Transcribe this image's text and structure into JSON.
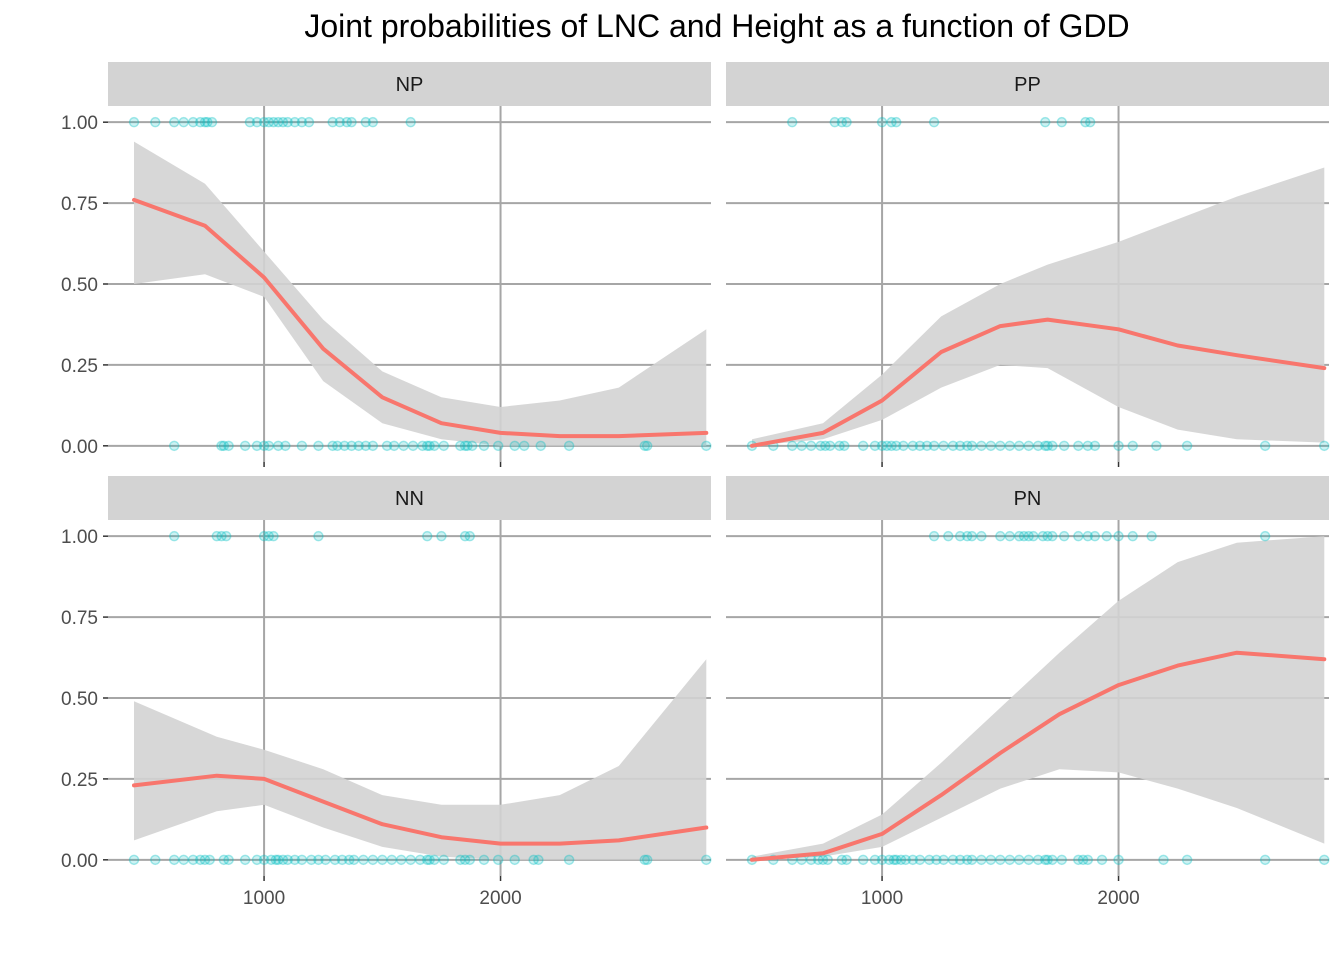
{
  "chart_data": {
    "type": "scatter",
    "title": "Joint probabilities of LNC and Height as a function of GDD",
    "xlabel": "",
    "ylabel": "",
    "xlim": [
      340,
      2890
    ],
    "ylim": [
      -0.05,
      1.05
    ],
    "x_ticks": [
      1000,
      2000
    ],
    "x_tick_labels": [
      "1000",
      "2000"
    ],
    "y_ticks": [
      0,
      0.25,
      0.5,
      0.75,
      1
    ],
    "y_tick_labels": [
      "0.00",
      "0.25",
      "0.50",
      "0.75",
      "1.00"
    ],
    "grid": true,
    "legend": "none",
    "colors": {
      "points": "#00BFC4",
      "fit_line": "#F8766D",
      "ribbon": "#d3d3d3",
      "strip": "#d3d3d3",
      "grid": "#a6a6a6"
    },
    "panels": [
      {
        "label": "NP",
        "points_at_1": [
          450,
          540,
          620,
          660,
          700,
          730,
          750,
          760,
          780,
          940,
          970,
          1000,
          1020,
          1040,
          1060,
          1080,
          1100,
          1130,
          1160,
          1190,
          1290,
          1320,
          1350,
          1370,
          1430,
          1460,
          1620
        ],
        "points_at_0": [
          620,
          820,
          830,
          850,
          920,
          970,
          1000,
          1020,
          1060,
          1090,
          1160,
          1230,
          1290,
          1310,
          1340,
          1370,
          1400,
          1430,
          1460,
          1520,
          1550,
          1590,
          1630,
          1670,
          1690,
          1700,
          1720,
          1760,
          1830,
          1850,
          1860,
          1880,
          1930,
          1990,
          2060,
          2100,
          2170,
          2290,
          2610,
          2620,
          2870
        ],
        "fit": {
          "x": [
            450,
            750,
            1000,
            1250,
            1500,
            1750,
            2000,
            2250,
            2500,
            2870
          ],
          "y": [
            0.76,
            0.68,
            0.52,
            0.3,
            0.15,
            0.07,
            0.04,
            0.03,
            0.03,
            0.04
          ]
        },
        "ribbon": {
          "x": [
            450,
            750,
            1000,
            1250,
            1500,
            1750,
            2000,
            2250,
            2500,
            2870
          ],
          "lower": [
            0.5,
            0.53,
            0.46,
            0.2,
            0.07,
            0.02,
            0.0,
            0.0,
            0.0,
            0.0
          ],
          "upper": [
            0.94,
            0.81,
            0.6,
            0.39,
            0.23,
            0.15,
            0.12,
            0.14,
            0.18,
            0.36
          ]
        }
      },
      {
        "label": "PP",
        "points_at_1": [
          620,
          800,
          830,
          850,
          1000,
          1040,
          1060,
          1220,
          1690,
          1760,
          1860,
          1880
        ],
        "points_at_0": [
          450,
          540,
          620,
          660,
          700,
          740,
          760,
          780,
          820,
          840,
          920,
          970,
          1000,
          1020,
          1040,
          1060,
          1090,
          1130,
          1160,
          1190,
          1220,
          1260,
          1300,
          1330,
          1360,
          1380,
          1420,
          1460,
          1500,
          1540,
          1580,
          1620,
          1660,
          1690,
          1700,
          1720,
          1770,
          1830,
          1870,
          1900,
          2000,
          2060,
          2160,
          2290,
          2620,
          2870
        ],
        "fit": {
          "x": [
            450,
            750,
            1000,
            1250,
            1500,
            1700,
            2000,
            2250,
            2500,
            2870
          ],
          "y": [
            0.0,
            0.04,
            0.14,
            0.29,
            0.37,
            0.39,
            0.36,
            0.31,
            0.28,
            0.24
          ]
        },
        "ribbon": {
          "x": [
            450,
            750,
            1000,
            1250,
            1500,
            1700,
            2000,
            2250,
            2500,
            2870
          ],
          "lower": [
            0.0,
            0.02,
            0.08,
            0.18,
            0.25,
            0.24,
            0.12,
            0.05,
            0.02,
            0.01
          ],
          "upper": [
            0.02,
            0.07,
            0.22,
            0.4,
            0.5,
            0.56,
            0.63,
            0.7,
            0.77,
            0.86
          ]
        }
      },
      {
        "label": "NN",
        "points_at_1": [
          620,
          800,
          820,
          840,
          1000,
          1020,
          1040,
          1230,
          1690,
          1750,
          1850,
          1870
        ],
        "points_at_0": [
          450,
          540,
          620,
          660,
          700,
          730,
          750,
          770,
          830,
          850,
          920,
          970,
          1000,
          1030,
          1050,
          1060,
          1080,
          1100,
          1130,
          1160,
          1200,
          1230,
          1260,
          1300,
          1330,
          1360,
          1380,
          1420,
          1460,
          1500,
          1540,
          1580,
          1620,
          1660,
          1690,
          1700,
          1720,
          1760,
          1830,
          1850,
          1870,
          1930,
          1990,
          2060,
          2140,
          2160,
          2290,
          2610,
          2620,
          2870
        ],
        "fit": {
          "x": [
            450,
            800,
            1000,
            1250,
            1500,
            1750,
            2000,
            2250,
            2500,
            2870
          ],
          "y": [
            0.23,
            0.26,
            0.25,
            0.18,
            0.11,
            0.07,
            0.05,
            0.05,
            0.06,
            0.1
          ]
        },
        "ribbon": {
          "x": [
            450,
            800,
            1000,
            1250,
            1500,
            1750,
            2000,
            2250,
            2500,
            2870
          ],
          "lower": [
            0.06,
            0.15,
            0.17,
            0.1,
            0.04,
            0.01,
            0.0,
            0.0,
            0.0,
            0.0
          ],
          "upper": [
            0.49,
            0.38,
            0.34,
            0.28,
            0.2,
            0.17,
            0.17,
            0.2,
            0.29,
            0.62
          ]
        }
      },
      {
        "label": "PN",
        "points_at_1": [
          1220,
          1280,
          1330,
          1360,
          1380,
          1420,
          1500,
          1540,
          1580,
          1600,
          1620,
          1640,
          1680,
          1700,
          1720,
          1770,
          1830,
          1870,
          1900,
          1950,
          2000,
          2060,
          2140,
          2620
        ],
        "points_at_0": [
          450,
          540,
          620,
          660,
          700,
          730,
          750,
          770,
          830,
          850,
          920,
          970,
          1000,
          1030,
          1050,
          1060,
          1080,
          1100,
          1130,
          1160,
          1200,
          1230,
          1260,
          1300,
          1330,
          1360,
          1380,
          1420,
          1460,
          1500,
          1540,
          1580,
          1620,
          1660,
          1690,
          1700,
          1720,
          1760,
          1830,
          1850,
          1870,
          1930,
          2000,
          2190,
          2290,
          2620,
          2870
        ],
        "fit": {
          "x": [
            450,
            750,
            1000,
            1250,
            1500,
            1750,
            2000,
            2250,
            2500,
            2870
          ],
          "y": [
            0.0,
            0.02,
            0.08,
            0.2,
            0.33,
            0.45,
            0.54,
            0.6,
            0.64,
            0.62
          ]
        },
        "ribbon": {
          "x": [
            450,
            750,
            1000,
            1250,
            1500,
            1750,
            2000,
            2250,
            2500,
            2870
          ],
          "lower": [
            0.0,
            0.01,
            0.04,
            0.13,
            0.22,
            0.28,
            0.27,
            0.22,
            0.16,
            0.05
          ],
          "upper": [
            0.01,
            0.05,
            0.14,
            0.3,
            0.47,
            0.64,
            0.8,
            0.92,
            0.98,
            1.0
          ]
        }
      }
    ]
  }
}
